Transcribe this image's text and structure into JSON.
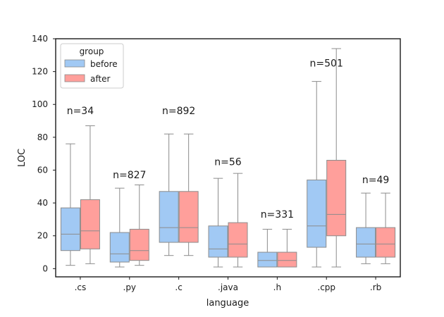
{
  "chart_data": {
    "type": "boxplot",
    "title": "",
    "xlabel": "language",
    "ylabel": "LOC",
    "ylim": [
      -5,
      140
    ],
    "yticks": [
      0,
      20,
      40,
      60,
      80,
      100,
      120,
      140
    ],
    "categories": [
      ".cs",
      ".py",
      ".c",
      ".java",
      ".h",
      ".cpp",
      ".rb"
    ],
    "legend": {
      "title": "group",
      "placement": "top-left",
      "entries": [
        {
          "name": "before",
          "color": "#a1c9f4"
        },
        {
          "name": "after",
          "color": "#ff9f9b"
        }
      ]
    },
    "series": [
      {
        "name": "before",
        "color": "#a1c9f4",
        "boxes": [
          {
            "whislo": 2,
            "q1": 11,
            "med": 21,
            "q3": 37,
            "whishi": 76
          },
          {
            "whislo": 1,
            "q1": 4,
            "med": 9,
            "q3": 22,
            "whishi": 49
          },
          {
            "whislo": 8,
            "q1": 16,
            "med": 25,
            "q3": 47,
            "whishi": 82
          },
          {
            "whislo": 1,
            "q1": 7,
            "med": 12,
            "q3": 26,
            "whishi": 55
          },
          {
            "whislo": 1,
            "q1": 1,
            "med": 5,
            "q3": 10,
            "whishi": 24
          },
          {
            "whislo": 1,
            "q1": 13,
            "med": 26,
            "q3": 54,
            "whishi": 114
          },
          {
            "whislo": 3,
            "q1": 7,
            "med": 15,
            "q3": 25,
            "whishi": 46
          }
        ]
      },
      {
        "name": "after",
        "color": "#ff9f9b",
        "boxes": [
          {
            "whislo": 3,
            "q1": 12,
            "med": 23,
            "q3": 42,
            "whishi": 87
          },
          {
            "whislo": 2,
            "q1": 5,
            "med": 11,
            "q3": 24,
            "whishi": 51
          },
          {
            "whislo": 8,
            "q1": 16,
            "med": 25,
            "q3": 47,
            "whishi": 82
          },
          {
            "whislo": 1,
            "q1": 7,
            "med": 15,
            "q3": 28,
            "whishi": 58
          },
          {
            "whislo": 1,
            "q1": 1,
            "med": 5,
            "q3": 10,
            "whishi": 24
          },
          {
            "whislo": 1,
            "q1": 20,
            "med": 33,
            "q3": 66,
            "whishi": 134
          },
          {
            "whislo": 3,
            "q1": 7,
            "med": 15,
            "q3": 25,
            "whishi": 46
          }
        ]
      }
    ],
    "annotations": [
      {
        "category": ".cs",
        "text": "n=34",
        "y": 94
      },
      {
        "category": ".py",
        "text": "n=827",
        "y": 55
      },
      {
        "category": ".c",
        "text": "n=892",
        "y": 94
      },
      {
        "category": ".java",
        "text": "n=56",
        "y": 63
      },
      {
        "category": ".h",
        "text": "n=331",
        "y": 31
      },
      {
        "category": ".cpp",
        "text": "n=501",
        "y": 123
      },
      {
        "category": ".rb",
        "text": "n=49",
        "y": 52
      }
    ]
  }
}
